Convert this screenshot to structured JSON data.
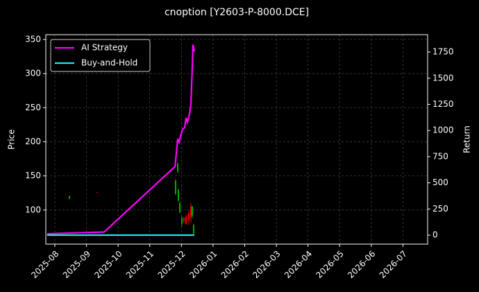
{
  "chart_data": {
    "type": "candlestick",
    "title": "cnoption [Y2603-P-8000.DCE]",
    "ylabel": "Price",
    "y2label": "Return",
    "xlim": [
      2025.5596,
      2026.565
    ],
    "xticks": [
      {
        "value": 2025.5833,
        "label": "2025-08"
      },
      {
        "value": 2025.6667,
        "label": "2025-09"
      },
      {
        "value": 2025.75,
        "label": "2025-10"
      },
      {
        "value": 2025.8333,
        "label": "2025-11"
      },
      {
        "value": 2025.9167,
        "label": "2025-12"
      },
      {
        "value": 2026.0,
        "label": "2026-01"
      },
      {
        "value": 2026.0833,
        "label": "2026-02"
      },
      {
        "value": 2026.1667,
        "label": "2026-03"
      },
      {
        "value": 2026.25,
        "label": "2026-04"
      },
      {
        "value": 2026.3333,
        "label": "2026-05"
      },
      {
        "value": 2026.4167,
        "label": "2026-06"
      },
      {
        "value": 2026.5,
        "label": "2026-07"
      }
    ],
    "ylim": [
      50,
      357
    ],
    "yticks": [
      100,
      150,
      200,
      250,
      300,
      350
    ],
    "y2lim": [
      -86,
      1916
    ],
    "y2ticks": [
      0,
      250,
      500,
      750,
      1000,
      1250,
      1500,
      1750
    ],
    "grid": true,
    "legend": "upper left",
    "candles": {
      "up_color": "#ff0000",
      "down_color": "#00b000",
      "x": [
        2025.6217,
        2025.6948,
        2025.9014,
        2025.9069,
        2025.9087,
        2025.9124,
        2025.9179,
        2025.9233,
        2025.9289,
        2025.9362,
        2025.9417,
        2025.9453,
        2025.9489
      ],
      "open": [
        120,
        126,
        143,
        168,
        130,
        110,
        88,
        84,
        80,
        85,
        90,
        105,
        78
      ],
      "high": [
        121,
        126.5,
        145,
        170,
        131,
        112,
        91,
        90,
        93,
        100,
        110,
        106,
        80
      ],
      "low": [
        116,
        125.5,
        122,
        154,
        112,
        95,
        76,
        80,
        78,
        78,
        82,
        88,
        64
      ],
      "close": [
        117,
        126.2,
        124,
        156,
        114,
        97,
        80,
        88,
        90,
        95,
        105,
        92,
        66
      ]
    },
    "series": [
      {
        "name": "AI Strategy",
        "color": "#ff00ff",
        "type": "line",
        "axis": "y2",
        "x": [
          2025.563,
          2025.7131,
          2025.9,
          2025.9069,
          2025.9106,
          2025.9142,
          2025.9197,
          2025.9252,
          2025.9289,
          2025.9325,
          2025.938,
          2025.9417,
          2025.9453,
          2025.9471,
          2025.9508
        ],
        "values": [
          13,
          30,
          656,
          921,
          888,
          941,
          1014,
          1027,
          1120,
          1080,
          1160,
          1252,
          1610,
          1822,
          1756
        ]
      },
      {
        "name": "Buy-and-Hold",
        "color": "#22e5e5",
        "type": "line",
        "axis": "y2",
        "x": [
          2025.563,
          2025.7131,
          2025.9,
          2025.9508
        ],
        "values": [
          0,
          0,
          0,
          0
        ]
      }
    ]
  }
}
